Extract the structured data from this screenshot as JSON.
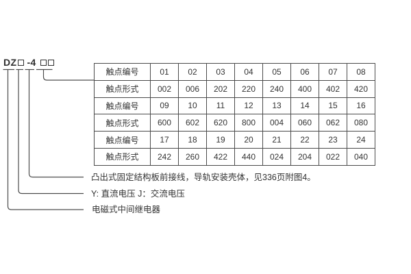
{
  "model": {
    "prefix": "DZ",
    "placeholder_box": "□",
    "series": "-4"
  },
  "table": {
    "rows": [
      {
        "label": "触点编号",
        "cells": [
          "01",
          "02",
          "03",
          "04",
          "05",
          "06",
          "07",
          "08"
        ]
      },
      {
        "label": "触点形式",
        "cells": [
          "002",
          "006",
          "202",
          "220",
          "240",
          "400",
          "402",
          "420"
        ]
      },
      {
        "label": "触点编号",
        "cells": [
          "09",
          "10",
          "11",
          "12",
          "13",
          "14",
          "15",
          "16"
        ]
      },
      {
        "label": "触点形式",
        "cells": [
          "600",
          "602",
          "620",
          "800",
          "004",
          "060",
          "062",
          "080"
        ]
      },
      {
        "label": "触点编号",
        "cells": [
          "17",
          "18",
          "19",
          "20",
          "21",
          "22",
          "23",
          "24"
        ]
      },
      {
        "label": "触点形式",
        "cells": [
          "242",
          "260",
          "422",
          "440",
          "024",
          "204",
          "022",
          "040"
        ]
      }
    ]
  },
  "legend": [
    "凸出式固定结构板前接线，导轨安装壳体，见336页附图4。",
    "Y: 直流电压  J：交流电压",
    "电磁式中间继电器"
  ],
  "colors": {
    "background": "#ffffff",
    "text": "#333333",
    "table_border": "#4a4a4a",
    "connector_line": "#4d4d4d"
  }
}
